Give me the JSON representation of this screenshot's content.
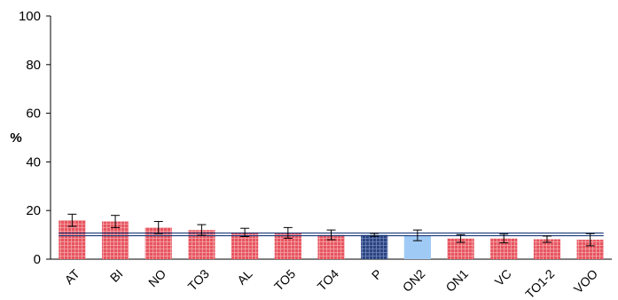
{
  "chart_data": {
    "type": "bar",
    "title": "",
    "xlabel": "",
    "ylabel": "%",
    "ylim": [
      0,
      100
    ],
    "yticks": [
      0,
      20,
      40,
      60,
      80,
      100
    ],
    "grid": false,
    "categories": [
      "AT",
      "BI",
      "NO",
      "TO3",
      "AL",
      "TO5",
      "TO4",
      "P",
      "ON2",
      "ON1",
      "VC",
      "TO1-2",
      "VOO"
    ],
    "values": [
      16,
      15.5,
      13,
      12,
      11,
      10.8,
      10,
      10,
      9.8,
      8.5,
      8.5,
      8.2,
      8
    ],
    "errors": [
      2.5,
      2.5,
      2.5,
      2.2,
      1.7,
      2.2,
      2,
      0.6,
      2.2,
      1.6,
      1.8,
      1.3,
      2.5
    ],
    "reference_line": 10.2,
    "colors": {
      "default": "#e8545e",
      "P": "#2b4480",
      "ON2": "#9fcaf5",
      "reference_line": "#1c3a78"
    }
  }
}
